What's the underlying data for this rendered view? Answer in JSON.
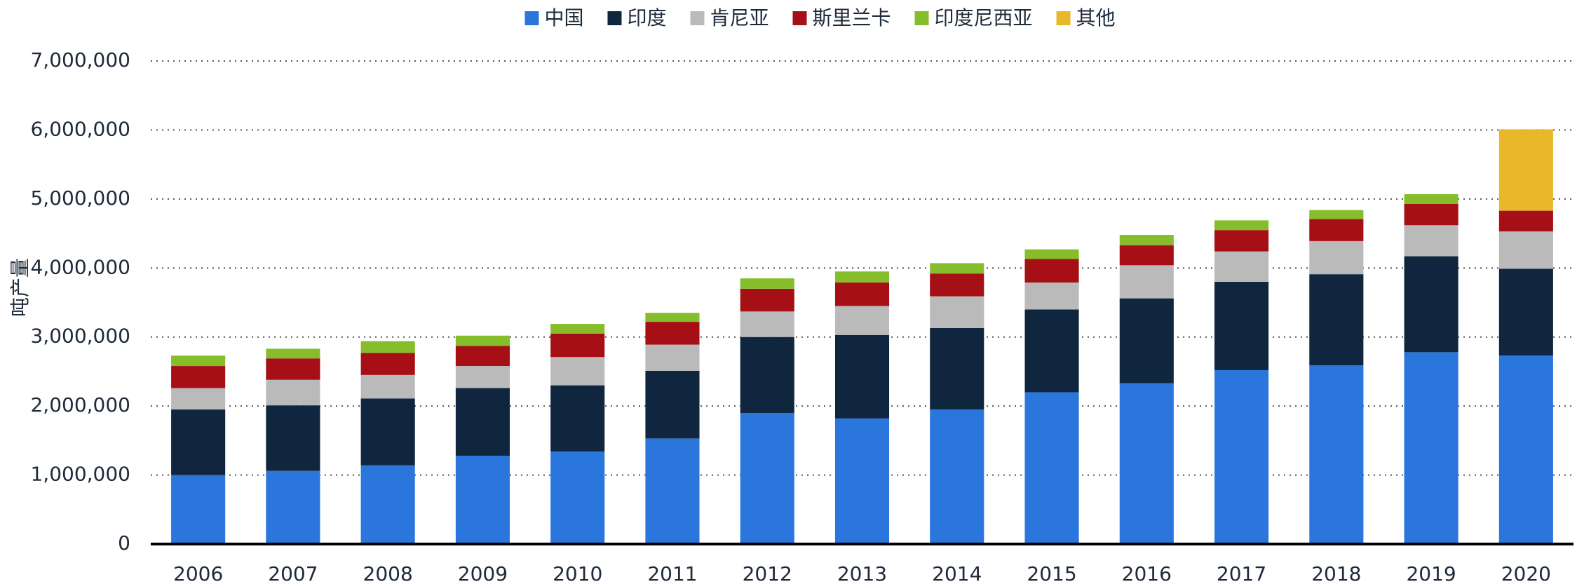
{
  "chart_data": {
    "type": "stacked_bar",
    "y_label": "吨产量",
    "categories": [
      "2006",
      "2007",
      "2008",
      "2009",
      "2010",
      "2011",
      "2012",
      "2013",
      "2014",
      "2015",
      "2016",
      "2017",
      "2018",
      "2019",
      "2020"
    ],
    "series": [
      {
        "name": "中国",
        "color": "#2a76dd",
        "values": [
          1000000,
          1060000,
          1140000,
          1280000,
          1340000,
          1530000,
          1900000,
          1820000,
          1950000,
          2200000,
          2330000,
          2520000,
          2590000,
          2780000,
          2730000
        ]
      },
      {
        "name": "印度",
        "color": "#10263e",
        "values": [
          950000,
          950000,
          970000,
          980000,
          960000,
          980000,
          1100000,
          1210000,
          1180000,
          1200000,
          1230000,
          1280000,
          1320000,
          1390000,
          1260000
        ]
      },
      {
        "name": "肯尼亚",
        "color": "#bababa",
        "values": [
          310000,
          370000,
          340000,
          320000,
          410000,
          380000,
          370000,
          420000,
          460000,
          390000,
          480000,
          440000,
          480000,
          450000,
          540000
        ]
      },
      {
        "name": "斯里兰卡",
        "color": "#a50f15",
        "values": [
          320000,
          310000,
          320000,
          290000,
          340000,
          330000,
          330000,
          340000,
          330000,
          340000,
          290000,
          310000,
          320000,
          310000,
          300000
        ]
      },
      {
        "name": "印度尼西亚",
        "color": "#86bd2b",
        "values": [
          150000,
          140000,
          170000,
          150000,
          140000,
          130000,
          150000,
          160000,
          150000,
          140000,
          150000,
          140000,
          130000,
          140000,
          null
        ]
      },
      {
        "name": "其他",
        "color": "#e9b72a",
        "values": [
          null,
          null,
          null,
          null,
          null,
          null,
          null,
          null,
          null,
          null,
          null,
          null,
          null,
          null,
          1180000
        ]
      }
    ],
    "ylim": [
      0,
      7000000
    ],
    "yticks": [
      0,
      {
        "value": 1000000,
        "label": "1,000,000"
      },
      {
        "value": 2000000,
        "label": "2,000,000"
      },
      {
        "value": 3000000,
        "label": "3,000,000"
      },
      {
        "value": 4000000,
        "label": "4,000,000"
      },
      {
        "value": 5000000,
        "label": "5,000,000"
      },
      {
        "value": 6000000,
        "label": "6,000,000"
      },
      {
        "value": 7000000,
        "label": "7,000,000"
      }
    ],
    "grid": true,
    "legend": "top"
  }
}
